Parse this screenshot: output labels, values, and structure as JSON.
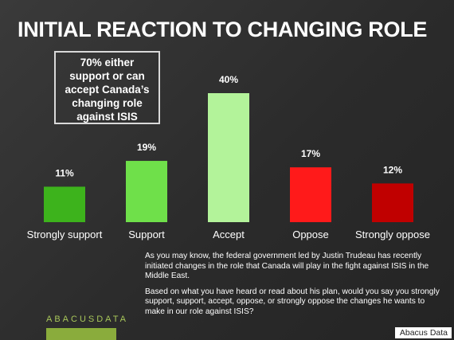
{
  "title": "INITIAL REACTION TO CHANGING ROLE",
  "callout": {
    "lines": [
      "70%  either",
      "support or can",
      "accept Canada’s",
      "changing role",
      "against ISIS"
    ]
  },
  "chart_data": {
    "type": "bar",
    "categories": [
      "Strongly support",
      "Support",
      "Accept",
      "Oppose",
      "Strongly oppose"
    ],
    "values": [
      11,
      19,
      40,
      17,
      12
    ],
    "value_labels": [
      "11%",
      "19%",
      "40%",
      "17%",
      "12%"
    ],
    "colors": [
      "#3db31c",
      "#6fe04a",
      "#b3f39a",
      "#ff1a1a",
      "#c00000"
    ],
    "ylim": [
      0,
      40
    ],
    "grid": false,
    "legend": "none"
  },
  "note": {
    "paragraph1": "As you may know, the federal government led by Justin Trudeau has recently initiated changes in the role that Canada will play in the fight against ISIS in the Middle East.",
    "paragraph2": "Based on what you have heard or read about his plan, would you say you strongly support, support, accept, oppose, or strongly oppose the changes he wants to make in our role against ISIS?"
  },
  "logo_text": "ABACUSDATA",
  "credit": "Abacus Data"
}
